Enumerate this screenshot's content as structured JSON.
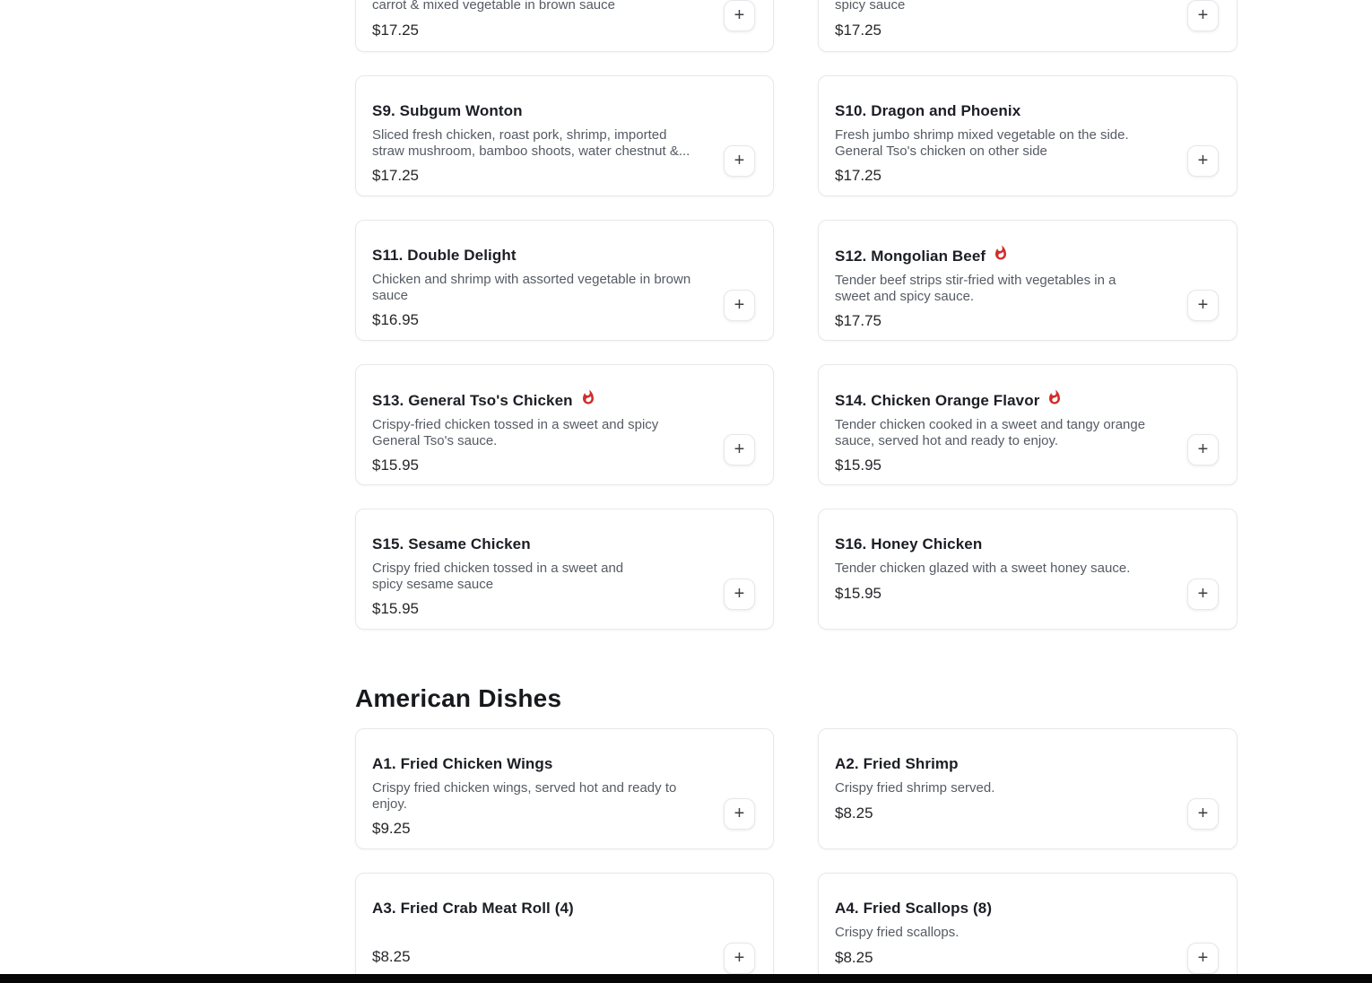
{
  "colors": {
    "spicy_flame": "#d02e2a",
    "footer_bar": "#060606"
  },
  "menu": {
    "add_button_label": "+",
    "partial_row": [
      {
        "description": "carrot & mixed vegetable in brown sauce",
        "price": "$17.25"
      },
      {
        "description": "spicy sauce",
        "price": "$17.25"
      }
    ],
    "sections": [
      {
        "heading": "",
        "items": [
          {
            "name": "S9. Subgum Wonton",
            "spicy": false,
            "description": "Sliced fresh chicken, roast pork, shrimp, imported\nstraw mushroom, bamboo shoots, water chestnut &...",
            "price": "$17.25"
          },
          {
            "name": "S10. Dragon and Phoenix",
            "spicy": false,
            "description": "Fresh jumbo shrimp mixed vegetable on the side.\nGeneral Tso's chicken on other side",
            "price": "$17.25"
          },
          {
            "name": "S11. Double Delight",
            "spicy": false,
            "description": "Chicken and shrimp with assorted vegetable in brown\nsauce",
            "price": "$16.95"
          },
          {
            "name": "S12. Mongolian Beef",
            "spicy": true,
            "description": "Tender beef strips stir-fried with vegetables in a\nsweet and spicy sauce.",
            "price": "$17.75"
          },
          {
            "name": "S13. General Tso's Chicken",
            "spicy": true,
            "description": "Crispy-fried chicken tossed in a sweet and spicy\nGeneral Tso's sauce.",
            "price": "$15.95"
          },
          {
            "name": "S14. Chicken Orange Flavor",
            "spicy": true,
            "description": "Tender chicken cooked in a sweet and tangy orange\nsauce, served hot and ready to enjoy.",
            "price": "$15.95"
          },
          {
            "name": "S15. Sesame Chicken",
            "spicy": false,
            "description": "Crispy fried chicken tossed in a sweet and\nspicy sesame sauce",
            "price": "$15.95"
          },
          {
            "name": "S16. Honey Chicken",
            "spicy": false,
            "description": "Tender chicken glazed with a sweet honey sauce.",
            "price": "$15.95"
          }
        ]
      },
      {
        "heading": "American Dishes",
        "items": [
          {
            "name": "A1. Fried Chicken Wings",
            "spicy": false,
            "description": "Crispy fried chicken wings, served hot and ready to\nenjoy.",
            "price": "$9.25"
          },
          {
            "name": "A2. Fried Shrimp",
            "spicy": false,
            "description": "Crispy fried shrimp served.",
            "price": "$8.25"
          },
          {
            "name": "A3. Fried Crab Meat Roll (4)",
            "spicy": false,
            "description": "",
            "price": "$8.25"
          },
          {
            "name": "A4. Fried Scallops (8)",
            "spicy": false,
            "description": "Crispy fried scallops.",
            "price": "$8.25"
          }
        ]
      }
    ]
  }
}
